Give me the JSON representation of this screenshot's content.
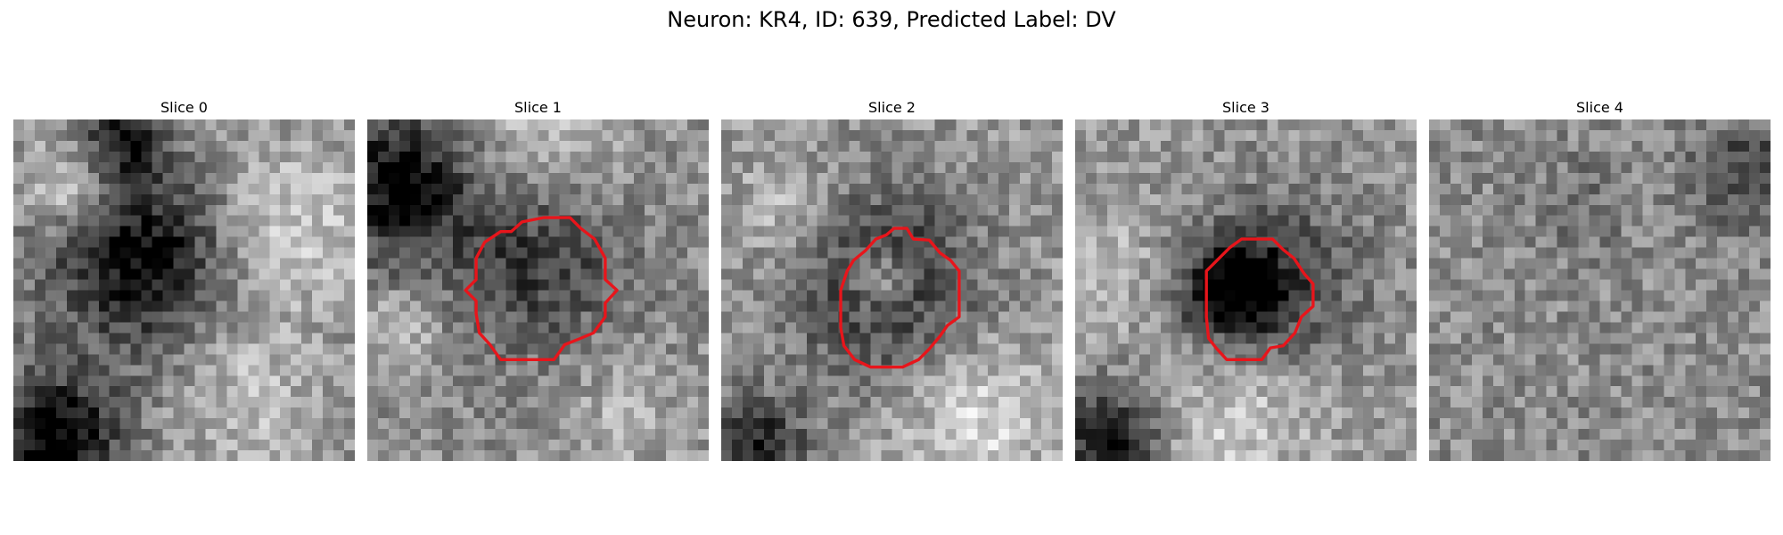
{
  "figure": {
    "title": "Neuron: KR4, ID: 639, Predicted Label: DV"
  },
  "colors": {
    "contour": "#e8151b",
    "colormap": "gray"
  },
  "grid_resolution": 32,
  "slices": [
    {
      "label": "Slice 0",
      "has_contour": false
    },
    {
      "label": "Slice 1",
      "has_contour": true
    },
    {
      "label": "Slice 2",
      "has_contour": true
    },
    {
      "label": "Slice 3",
      "has_contour": true
    },
    {
      "label": "Slice 4",
      "has_contour": false
    }
  ]
}
